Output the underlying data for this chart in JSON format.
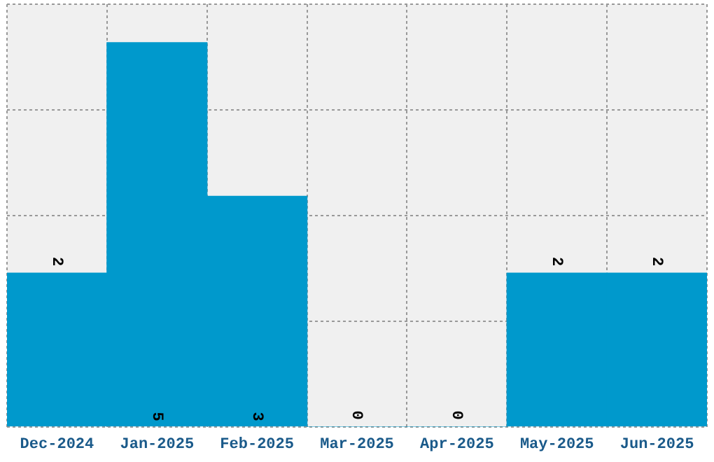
{
  "chart_data": {
    "type": "bar",
    "categories": [
      "Dec-2024",
      "Jan-2025",
      "Feb-2025",
      "Mar-2025",
      "Apr-2025",
      "May-2025",
      "Jun-2025"
    ],
    "values": [
      2,
      5,
      3,
      0,
      0,
      2,
      2
    ],
    "color": "#0099cc",
    "ylim": [
      0,
      5.5
    ],
    "yticks": [
      {
        "value": 0,
        "label": null
      },
      {
        "value": 1.375,
        "label": null
      },
      {
        "value": 2.75,
        "label": null
      },
      {
        "value": 4.125,
        "label": null
      },
      {
        "value": 5.5,
        "label": null
      }
    ],
    "tick_labels": "x",
    "grid": true,
    "legend": false,
    "data_labels": true
  }
}
